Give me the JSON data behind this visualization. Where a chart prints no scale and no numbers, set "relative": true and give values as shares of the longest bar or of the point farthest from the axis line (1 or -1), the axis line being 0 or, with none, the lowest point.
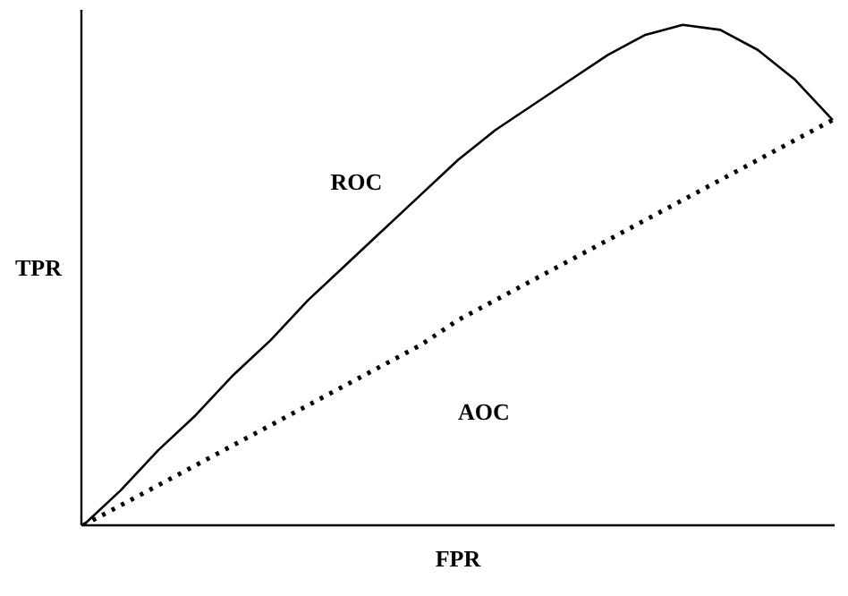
{
  "chart_data": {
    "type": "line",
    "relative": true,
    "xlabel": "FPR",
    "ylabel": "TPR",
    "annotations": [
      "ROC",
      "AOC"
    ],
    "categories": [
      null,
      null,
      null,
      null,
      null,
      null,
      null,
      null,
      null,
      null,
      null,
      null,
      null,
      null,
      null,
      null,
      null,
      null,
      null,
      null,
      null
    ],
    "series": [
      {
        "color": "#000000",
        "line_style": "solid",
        "values": [
          0,
          0.07,
          0.15,
          0.22,
          0.3,
          0.37,
          0.45,
          0.52,
          0.59,
          0.66,
          0.73,
          0.79,
          0.84,
          0.89,
          0.94,
          0.98,
          1.0,
          0.99,
          0.95,
          0.89,
          0.81
        ]
      },
      {
        "color": "#000000",
        "line_style": "dotted",
        "values": [
          0,
          0.04,
          0.08,
          0.12,
          0.16,
          0.2,
          0.24,
          0.28,
          0.32,
          0.36,
          0.41,
          0.45,
          0.49,
          0.53,
          0.57,
          0.61,
          0.65,
          0.69,
          0.73,
          0.77,
          0.81
        ]
      }
    ],
    "grid": false,
    "tick_labels": false,
    "marker": "none"
  }
}
